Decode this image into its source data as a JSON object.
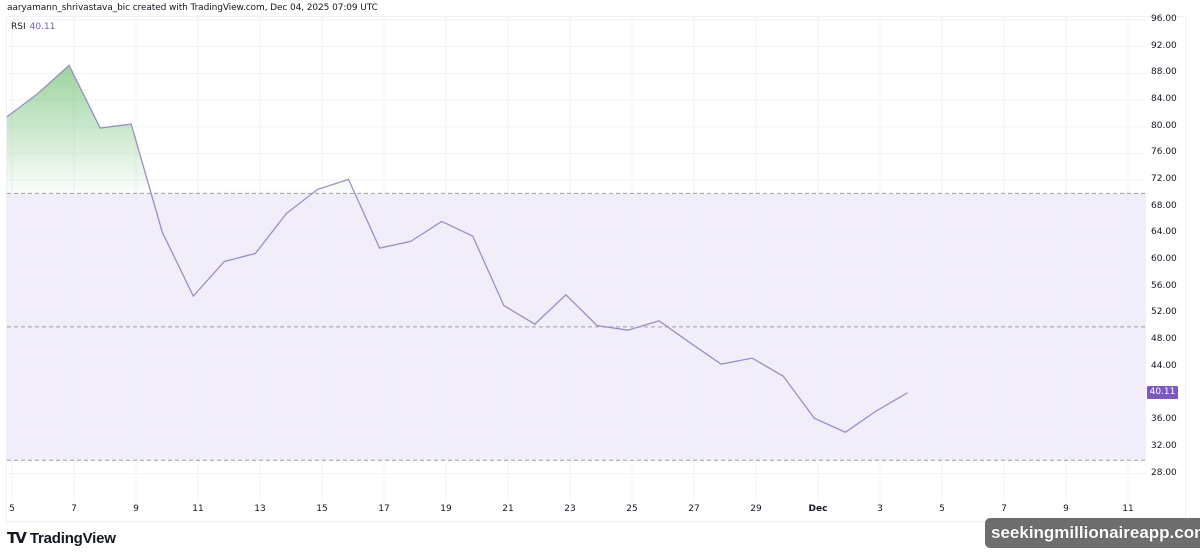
{
  "header": {
    "caption": "aaryamann_shrivastava_bic created with TradingView.com, Dec 04, 2025 07:09 UTC"
  },
  "legend": {
    "indicator": "RSI",
    "value": "40.11"
  },
  "y_axis": {
    "labels": [
      "96.00",
      "92.00",
      "88.00",
      "84.00",
      "80.00",
      "76.00",
      "72.00",
      "68.00",
      "64.00",
      "60.00",
      "56.00",
      "52.00",
      "48.00",
      "44.00",
      "36.00",
      "32.00",
      "28.00"
    ],
    "current_value_tag": "40.11"
  },
  "x_axis": {
    "labels": [
      "5",
      "7",
      "9",
      "11",
      "13",
      "15",
      "17",
      "19",
      "21",
      "23",
      "25",
      "27",
      "29",
      "Dec",
      "3",
      "5",
      "7",
      "9",
      "11"
    ]
  },
  "footer": {
    "brand": "TradingView",
    "brand_mark": "TV",
    "watermark": "seekingmillionaireapp.com"
  },
  "colors": {
    "rsi_line": "#9b8ec4",
    "band_fill": "#efebf9",
    "overbought_fill": "#4caf50",
    "price_tag": "#7e57c2",
    "grid": "#f0f3fa",
    "dashed_level": "#9e9e9e"
  },
  "chart_data": {
    "type": "line",
    "title": "RSI",
    "subtitle": "aaryamann_shrivastava_bic created with TradingView.com, Dec 04, 2025 07:09 UTC",
    "xlabel": "",
    "ylabel": "",
    "ylim": [
      26,
      97
    ],
    "grid": true,
    "legend_position": "top-left",
    "x": [
      "Nov 5",
      "Nov 6",
      "Nov 7",
      "Nov 8",
      "Nov 9",
      "Nov 10",
      "Nov 11",
      "Nov 12",
      "Nov 13",
      "Nov 14",
      "Nov 15",
      "Nov 16",
      "Nov 17",
      "Nov 18",
      "Nov 19",
      "Nov 20",
      "Nov 21",
      "Nov 22",
      "Nov 23",
      "Nov 24",
      "Nov 25",
      "Nov 26",
      "Nov 27",
      "Nov 28",
      "Nov 29",
      "Nov 30",
      "Dec 1",
      "Dec 2",
      "Dec 3",
      "Dec 4"
    ],
    "series": [
      {
        "name": "RSI",
        "values": [
          81.5,
          85.0,
          89.2,
          79.8,
          80.4,
          64.2,
          54.6,
          59.8,
          61.0,
          67.0,
          70.6,
          72.1,
          61.8,
          62.8,
          65.8,
          63.6,
          53.2,
          50.4,
          54.8,
          50.2,
          49.5,
          50.9,
          47.6,
          44.4,
          45.3,
          42.6,
          36.3,
          34.2,
          37.4,
          40.11
        ]
      }
    ],
    "levels": {
      "overbought": 70,
      "middle": 50,
      "oversold": 30
    },
    "annotations": [
      "Last value 40.11",
      "Overbought fill above 70 (green gradient)",
      "Band fill between 30 and 70"
    ]
  }
}
